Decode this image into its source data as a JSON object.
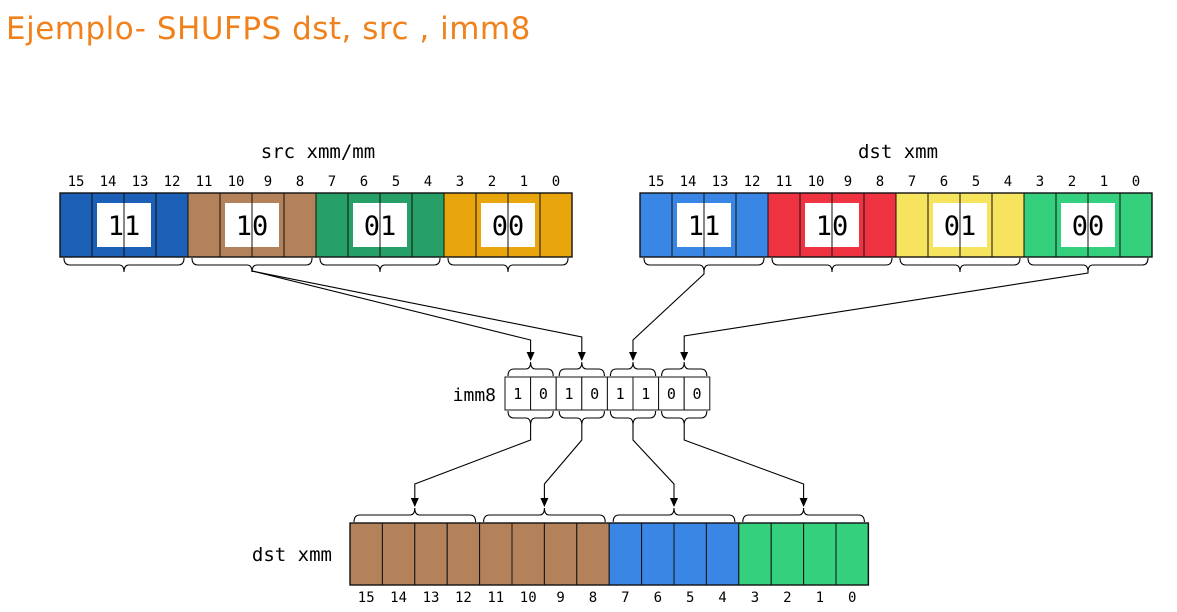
{
  "title": "Ejemplo- SHUFPS dst, src , imm8",
  "byte_labels": [
    "15",
    "14",
    "13",
    "12",
    "11",
    "10",
    "9",
    "8",
    "7",
    "6",
    "5",
    "4",
    "3",
    "2",
    "1",
    "0"
  ],
  "src": {
    "label": "src xmm/mm",
    "colors": [
      "#1b5fb7",
      "#b3825a",
      "#27a067",
      "#e8a50c"
    ],
    "selectors": [
      "11",
      "10",
      "01",
      "00"
    ]
  },
  "dst": {
    "label": "dst xmm",
    "colors": [
      "#3a86e4",
      "#ef3340",
      "#f7e45e",
      "#35d07e"
    ],
    "selectors": [
      "11",
      "10",
      "01",
      "00"
    ]
  },
  "imm8": {
    "label": "imm8",
    "bits": [
      "1",
      "0",
      "1",
      "0",
      "1",
      "1",
      "0",
      "0"
    ]
  },
  "result": {
    "label": "dst xmm",
    "colors": [
      "#b3825a",
      "#b3825a",
      "#3a86e4",
      "#35d07e"
    ]
  }
}
